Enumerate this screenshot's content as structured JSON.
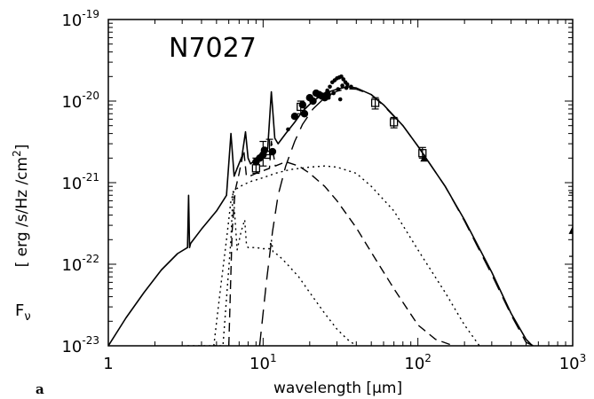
{
  "chart_data": {
    "type": "line",
    "title": "N7027",
    "panel_label": "a",
    "xlabel_text": "wavelength [",
    "xlabel_unit": "μm",
    "xlabel_close": "]",
    "ylabel_symbol": "F",
    "ylabel_sub": "ν",
    "ylabel_units": "[ erg /s/Hz /cm",
    "ylabel_units_sup": "2",
    "ylabel_units_close": "]",
    "x_scale": "log",
    "y_scale": "log",
    "xlim": [
      1,
      1000
    ],
    "ylim": [
      1e-23,
      1e-19
    ],
    "x_ticks": [
      {
        "value": 1,
        "label": "1",
        "sup": ""
      },
      {
        "value": 10,
        "label": "10",
        "sup": "1"
      },
      {
        "value": 100,
        "label": "10",
        "sup": "2"
      },
      {
        "value": 1000,
        "label": "10",
        "sup": "3"
      }
    ],
    "y_ticks": [
      {
        "value": 1e-23,
        "label": "10",
        "sup": "-23"
      },
      {
        "value": 1e-22,
        "label": "10",
        "sup": "-22"
      },
      {
        "value": 1e-21,
        "label": "10",
        "sup": "-21"
      },
      {
        "value": 1e-20,
        "label": "10",
        "sup": "-20"
      },
      {
        "value": 1e-19,
        "label": "10",
        "sup": "-19"
      }
    ],
    "series": [
      {
        "style": "solid",
        "x": [
          1.0,
          1.3,
          1.7,
          2.2,
          2.8,
          3.25,
          3.3,
          3.35,
          3.4,
          4.0,
          5.0,
          5.8,
          6.2,
          6.5,
          6.8,
          7.3,
          7.7,
          8.0,
          8.3,
          8.6,
          9.0,
          10.0,
          10.7,
          11.3,
          11.9,
          12.5,
          14,
          16,
          18,
          21,
          25,
          30,
          35,
          40,
          50,
          60,
          80,
          100,
          150,
          200,
          300,
          400,
          500,
          550
        ],
        "y": [
          1e-23,
          2.2e-23,
          4.5e-23,
          8.5e-23,
          1.35e-22,
          1.6e-22,
          7e-22,
          1.6e-22,
          1.8e-22,
          2.7e-22,
          4.5e-22,
          7e-22,
          4e-21,
          1.2e-21,
          1.5e-21,
          2.1e-21,
          4.2e-21,
          2e-21,
          1.7e-21,
          1.8e-21,
          2e-21,
          2.4e-21,
          2.6e-21,
          1.3e-20,
          3.5e-21,
          3e-21,
          4e-21,
          5.5e-21,
          7.5e-21,
          1e-20,
          1.25e-20,
          1.4e-20,
          1.5e-20,
          1.45e-20,
          1.2e-20,
          9e-21,
          5e-21,
          2.8e-21,
          9e-22,
          3.5e-22,
          8e-23,
          2.5e-23,
          1.2e-23,
          1e-23
        ]
      },
      {
        "style": "long-dash",
        "x": [
          9.5,
          10.5,
          11.5,
          12.5,
          14,
          16,
          18,
          21,
          25,
          30,
          35,
          40,
          50,
          60,
          80,
          100,
          150,
          200,
          300,
          400,
          500,
          560
        ],
        "y": [
          1e-23,
          6e-23,
          2.5e-22,
          7e-22,
          1.6e-21,
          3.2e-21,
          5.2e-21,
          8e-21,
          1.1e-20,
          1.32e-20,
          1.42e-20,
          1.4e-20,
          1.2e-20,
          8.8e-21,
          5e-21,
          2.8e-21,
          9e-22,
          3.4e-22,
          7.5e-23,
          2.4e-23,
          1.1e-23,
          1e-23
        ]
      },
      {
        "style": "medium-dash",
        "x": [
          6.0,
          6.3,
          6.6,
          7.0,
          7.5,
          7.8,
          8.2,
          8.6,
          9.0,
          10.0,
          11.0,
          11.3,
          12.0,
          14,
          17,
          20,
          25,
          30,
          40,
          50,
          70,
          100,
          130,
          170
        ],
        "y": [
          1e-23,
          2.5e-22,
          8e-22,
          1.3e-21,
          2.5e-21,
          1.2e-21,
          1.2e-21,
          1.25e-21,
          1.3e-21,
          1.4e-21,
          1.5e-21,
          3.2e-21,
          1.6e-21,
          1.8e-21,
          1.6e-21,
          1.3e-21,
          9e-22,
          6e-22,
          2.8e-22,
          1.4e-22,
          5e-23,
          1.8e-23,
          1.2e-23,
          1e-23
        ]
      },
      {
        "style": "dotted",
        "x": [
          4.8,
          5.3,
          5.8,
          6.2,
          6.5,
          7.0,
          7.5,
          8.0,
          8.5,
          9.0,
          10,
          12,
          15,
          20,
          25,
          30,
          40,
          50,
          70,
          100,
          150,
          200,
          250
        ],
        "y": [
          1e-23,
          5e-23,
          2e-22,
          6e-22,
          8e-22,
          8.8e-22,
          9.5e-22,
          1e-21,
          1.05e-21,
          1.08e-21,
          1.15e-21,
          1.3e-21,
          1.45e-21,
          1.55e-21,
          1.6e-21,
          1.55e-21,
          1.3e-21,
          9e-22,
          4.5e-22,
          1.5e-22,
          4.5e-23,
          1.8e-23,
          1e-23
        ]
      },
      {
        "style": "dotted",
        "x": [
          3.25,
          3.3,
          3.35,
          4.5,
          5.5,
          6.2,
          6.4,
          6.8,
          7.2,
          7.6,
          7.8,
          8.0,
          8.5,
          9.0,
          10.0,
          11.0,
          11.3,
          11.6,
          12.5,
          14,
          17,
          20,
          25,
          30,
          35,
          40
        ],
        "y": [
          1e-23,
          1e-23,
          1e-23,
          1e-23,
          1e-23,
          2e-22,
          8e-22,
          1.5e-22,
          2.5e-22,
          3.5e-22,
          1.8e-22,
          1.6e-22,
          1.6e-22,
          1.6e-22,
          1.55e-22,
          1.55e-22,
          2e-22,
          1.4e-22,
          1.3e-22,
          1.05e-22,
          7e-23,
          4.5e-23,
          2.5e-23,
          1.6e-23,
          1.2e-23,
          1e-23
        ]
      }
    ],
    "observations": {
      "filled_circles": {
        "x": [
          9.0,
          9.5,
          10.0,
          10.2,
          11.5,
          16,
          18,
          18.5,
          20,
          21,
          22,
          23,
          24,
          25,
          26
        ],
        "y": [
          1.8e-21,
          2e-21,
          2.2e-21,
          2.5e-21,
          2.4e-21,
          6.5e-21,
          9e-21,
          7e-21,
          1.1e-20,
          1e-20,
          1.25e-20,
          1.2e-20,
          1.15e-20,
          1.1e-20,
          1.2e-20
        ]
      },
      "small_dots": {
        "x": [
          14.5,
          25,
          26,
          27,
          28,
          29,
          30,
          31,
          32,
          33,
          34,
          35,
          26.5,
          28.5,
          30.5,
          32.5,
          34.5,
          37,
          31.5
        ],
        "y": [
          4.5e-21,
          1.2e-20,
          1.35e-20,
          1.5e-20,
          1.7e-20,
          1.8e-20,
          1.9e-20,
          1.95e-20,
          2e-20,
          1.85e-20,
          1.7e-20,
          1.6e-20,
          1.1e-20,
          1.25e-20,
          1.4e-20,
          1.55e-20,
          1.45e-20,
          1.5e-20,
          1.05e-20
        ]
      },
      "open_squares": {
        "x": [
          9.0,
          10.5,
          17.5,
          53,
          70,
          107
        ],
        "y": [
          1.5e-21,
          2.2e-21,
          8.5e-21,
          9.5e-21,
          5.5e-21,
          2.3e-21
        ]
      },
      "triangles": {
        "x": [
          110,
          1000
        ],
        "y": [
          2e-21,
          2.6e-22
        ]
      },
      "error_bars": [
        {
          "x": 9.0,
          "lo": 1.3e-21,
          "hi": 2e-21
        },
        {
          "x": 10.0,
          "lo": 1.6e-21,
          "hi": 3.2e-21
        },
        {
          "x": 11.0,
          "lo": 2.2e-21,
          "hi": 3.4e-21
        },
        {
          "x": 17.5,
          "lo": 7e-21,
          "hi": 1e-20
        },
        {
          "x": 53,
          "lo": 8e-21,
          "hi": 1.1e-20
        },
        {
          "x": 70,
          "lo": 4.7e-21,
          "hi": 6.3e-21
        },
        {
          "x": 107,
          "lo": 2e-21,
          "hi": 2.7e-21
        },
        {
          "x": 1000,
          "lo": 1.25e-22,
          "hi": 7.5e-22
        }
      ]
    }
  }
}
